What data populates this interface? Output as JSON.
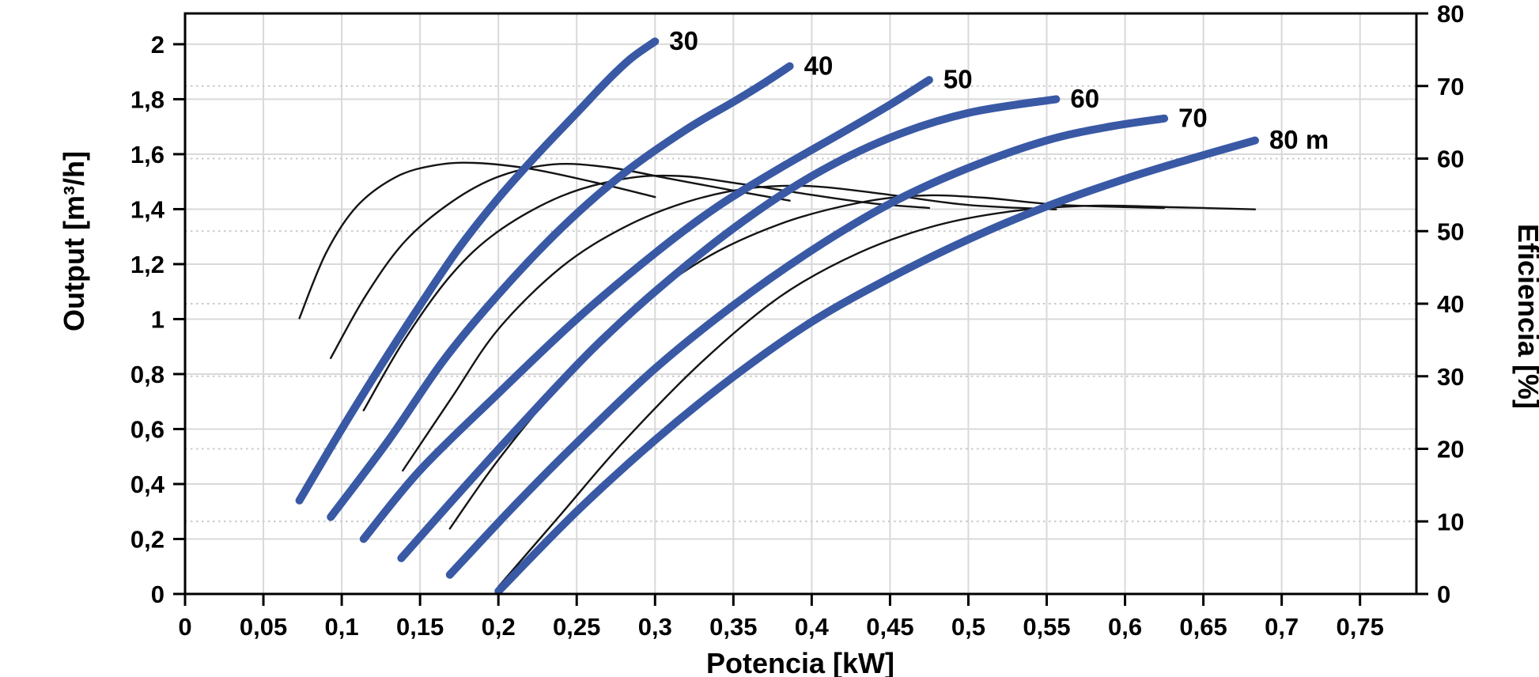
{
  "figure": {
    "title": "",
    "xlabel": "Potencia [kW]",
    "ylabel_left": "Output [m³/h]",
    "ylabel_right": "Eficiencia [%]"
  },
  "colors": {
    "head_curve": "#3959A5",
    "efficiency_curve": "#141414",
    "grid_major": "#d9d9d9",
    "grid_minor_dotted": "#c9c9c9",
    "axis": "#000000",
    "text": "#000000",
    "background": "#ffffff"
  },
  "chart_data": {
    "type": "line",
    "title": "",
    "xlabel": "Potencia [kW]",
    "ylabel_left": "Output [m³/h]",
    "ylabel_right": "Eficiencia [%]",
    "legend": "none",
    "grid": {
      "vertical_solid_at_kW": [
        0.05,
        0.1,
        0.15,
        0.2,
        0.25,
        0.3,
        0.35,
        0.4,
        0.45,
        0.5,
        0.55,
        0.6,
        0.65,
        0.7,
        0.75
      ],
      "horizontal_solid_at_output": [
        0.2,
        0.4,
        0.6,
        0.8,
        1.0,
        1.2,
        1.4,
        1.6,
        1.8,
        2.0
      ],
      "horizontal_dotted_at_efficiency": [
        10,
        20,
        30,
        40,
        50,
        60,
        70
      ]
    },
    "x_axis": {
      "min": 0,
      "max": 0.786,
      "tick_values": [
        0,
        0.05,
        0.1,
        0.15,
        0.2,
        0.25,
        0.3,
        0.35,
        0.4,
        0.45,
        0.5,
        0.55,
        0.6,
        0.65,
        0.7,
        0.75
      ],
      "tick_labels": [
        "0",
        "0,05",
        "0,1",
        "0,15",
        "0,2",
        "0,25",
        "0,3",
        "0,35",
        "0,4",
        "0,45",
        "0,5",
        "0,55",
        "0,6",
        "0,65",
        "0,7",
        "0,75"
      ]
    },
    "y_left": {
      "min": 0,
      "max": 2.112,
      "tick_values": [
        0,
        0.2,
        0.4,
        0.6,
        0.8,
        1.0,
        1.2,
        1.4,
        1.6,
        1.8,
        2.0
      ],
      "tick_labels": [
        "0",
        "0,2",
        "0,4",
        "0,6",
        "0,8",
        "1",
        "1,2",
        "1,4",
        "1,6",
        "1,8",
        "2"
      ]
    },
    "y_right": {
      "min": 0,
      "max": 80,
      "tick_values": [
        0,
        10,
        20,
        30,
        40,
        50,
        60,
        70,
        80
      ],
      "tick_labels": [
        "0",
        "10",
        "20",
        "30",
        "40",
        "50",
        "60",
        "70",
        "80"
      ]
    },
    "head_curves_output_m3h": [
      {
        "head_m": 30,
        "label": "30",
        "points": [
          [
            0.073,
            0.34
          ],
          [
            0.1,
            0.6
          ],
          [
            0.125,
            0.83
          ],
          [
            0.15,
            1.05
          ],
          [
            0.175,
            1.26
          ],
          [
            0.2,
            1.44
          ],
          [
            0.225,
            1.6
          ],
          [
            0.25,
            1.75
          ],
          [
            0.27,
            1.87
          ],
          [
            0.285,
            1.95
          ],
          [
            0.3,
            2.01
          ]
        ]
      },
      {
        "head_m": 40,
        "label": "40",
        "points": [
          [
            0.093,
            0.28
          ],
          [
            0.13,
            0.56
          ],
          [
            0.165,
            0.85
          ],
          [
            0.2,
            1.09
          ],
          [
            0.24,
            1.33
          ],
          [
            0.28,
            1.53
          ],
          [
            0.32,
            1.69
          ],
          [
            0.35,
            1.79
          ],
          [
            0.37,
            1.86
          ],
          [
            0.386,
            1.92
          ]
        ]
      },
      {
        "head_m": 50,
        "label": "50",
        "points": [
          [
            0.114,
            0.2
          ],
          [
            0.15,
            0.45
          ],
          [
            0.2,
            0.73
          ],
          [
            0.25,
            1.0
          ],
          [
            0.3,
            1.24
          ],
          [
            0.34,
            1.41
          ],
          [
            0.38,
            1.55
          ],
          [
            0.42,
            1.68
          ],
          [
            0.45,
            1.78
          ],
          [
            0.475,
            1.87
          ]
        ]
      },
      {
        "head_m": 60,
        "label": "60",
        "points": [
          [
            0.138,
            0.13
          ],
          [
            0.18,
            0.4
          ],
          [
            0.22,
            0.65
          ],
          [
            0.26,
            0.89
          ],
          [
            0.3,
            1.1
          ],
          [
            0.35,
            1.33
          ],
          [
            0.4,
            1.52
          ],
          [
            0.45,
            1.66
          ],
          [
            0.5,
            1.75
          ],
          [
            0.556,
            1.8
          ]
        ]
      },
      {
        "head_m": 70,
        "label": "70",
        "points": [
          [
            0.169,
            0.07
          ],
          [
            0.21,
            0.32
          ],
          [
            0.25,
            0.55
          ],
          [
            0.3,
            0.82
          ],
          [
            0.35,
            1.05
          ],
          [
            0.4,
            1.25
          ],
          [
            0.45,
            1.42
          ],
          [
            0.5,
            1.55
          ],
          [
            0.55,
            1.65
          ],
          [
            0.59,
            1.7
          ],
          [
            0.625,
            1.73
          ]
        ]
      },
      {
        "head_m": 80,
        "label": "80 m",
        "points": [
          [
            0.2,
            0.01
          ],
          [
            0.25,
            0.3
          ],
          [
            0.3,
            0.56
          ],
          [
            0.35,
            0.79
          ],
          [
            0.4,
            0.99
          ],
          [
            0.45,
            1.15
          ],
          [
            0.5,
            1.29
          ],
          [
            0.55,
            1.41
          ],
          [
            0.6,
            1.51
          ],
          [
            0.64,
            1.58
          ],
          [
            0.683,
            1.65
          ]
        ]
      }
    ],
    "efficiency_curves_pct": [
      {
        "head_m": 30,
        "points": [
          [
            0.073,
            38
          ],
          [
            0.09,
            47
          ],
          [
            0.11,
            53.5
          ],
          [
            0.135,
            57.5
          ],
          [
            0.16,
            59.1
          ],
          [
            0.185,
            59.4
          ],
          [
            0.22,
            58.6
          ],
          [
            0.26,
            56.8
          ],
          [
            0.3,
            54.7
          ]
        ]
      },
      {
        "head_m": 40,
        "points": [
          [
            0.093,
            32.5
          ],
          [
            0.115,
            41
          ],
          [
            0.14,
            48.5
          ],
          [
            0.17,
            54
          ],
          [
            0.2,
            57.5
          ],
          [
            0.235,
            59.2
          ],
          [
            0.27,
            58.8
          ],
          [
            0.31,
            57.2
          ],
          [
            0.35,
            55.6
          ],
          [
            0.386,
            54.2
          ]
        ]
      },
      {
        "head_m": 50,
        "points": [
          [
            0.114,
            25.3
          ],
          [
            0.14,
            35
          ],
          [
            0.17,
            44
          ],
          [
            0.2,
            50
          ],
          [
            0.24,
            54.8
          ],
          [
            0.28,
            57.2
          ],
          [
            0.315,
            57.6
          ],
          [
            0.355,
            56.5
          ],
          [
            0.4,
            55
          ],
          [
            0.44,
            53.8
          ],
          [
            0.475,
            53.2
          ]
        ]
      },
      {
        "head_m": 60,
        "points": [
          [
            0.139,
            17
          ],
          [
            0.17,
            27
          ],
          [
            0.2,
            36.5
          ],
          [
            0.24,
            45
          ],
          [
            0.28,
            50.5
          ],
          [
            0.32,
            54
          ],
          [
            0.36,
            55.9
          ],
          [
            0.4,
            56.2
          ],
          [
            0.45,
            55.0
          ],
          [
            0.5,
            53.6
          ],
          [
            0.556,
            53.0
          ]
        ]
      },
      {
        "head_m": 70,
        "points": [
          [
            0.169,
            9
          ],
          [
            0.2,
            18.5
          ],
          [
            0.24,
            29
          ],
          [
            0.28,
            38
          ],
          [
            0.33,
            46
          ],
          [
            0.38,
            51
          ],
          [
            0.43,
            53.9
          ],
          [
            0.47,
            54.9
          ],
          [
            0.51,
            54.6
          ],
          [
            0.56,
            53.6
          ],
          [
            0.625,
            53.2
          ]
        ]
      },
      {
        "head_m": 80,
        "points": [
          [
            0.2,
            1
          ],
          [
            0.24,
            11
          ],
          [
            0.28,
            21
          ],
          [
            0.33,
            32
          ],
          [
            0.38,
            41
          ],
          [
            0.43,
            47
          ],
          [
            0.48,
            50.8
          ],
          [
            0.53,
            52.8
          ],
          [
            0.58,
            53.5
          ],
          [
            0.63,
            53.3
          ],
          [
            0.683,
            53.0
          ]
        ]
      }
    ]
  }
}
